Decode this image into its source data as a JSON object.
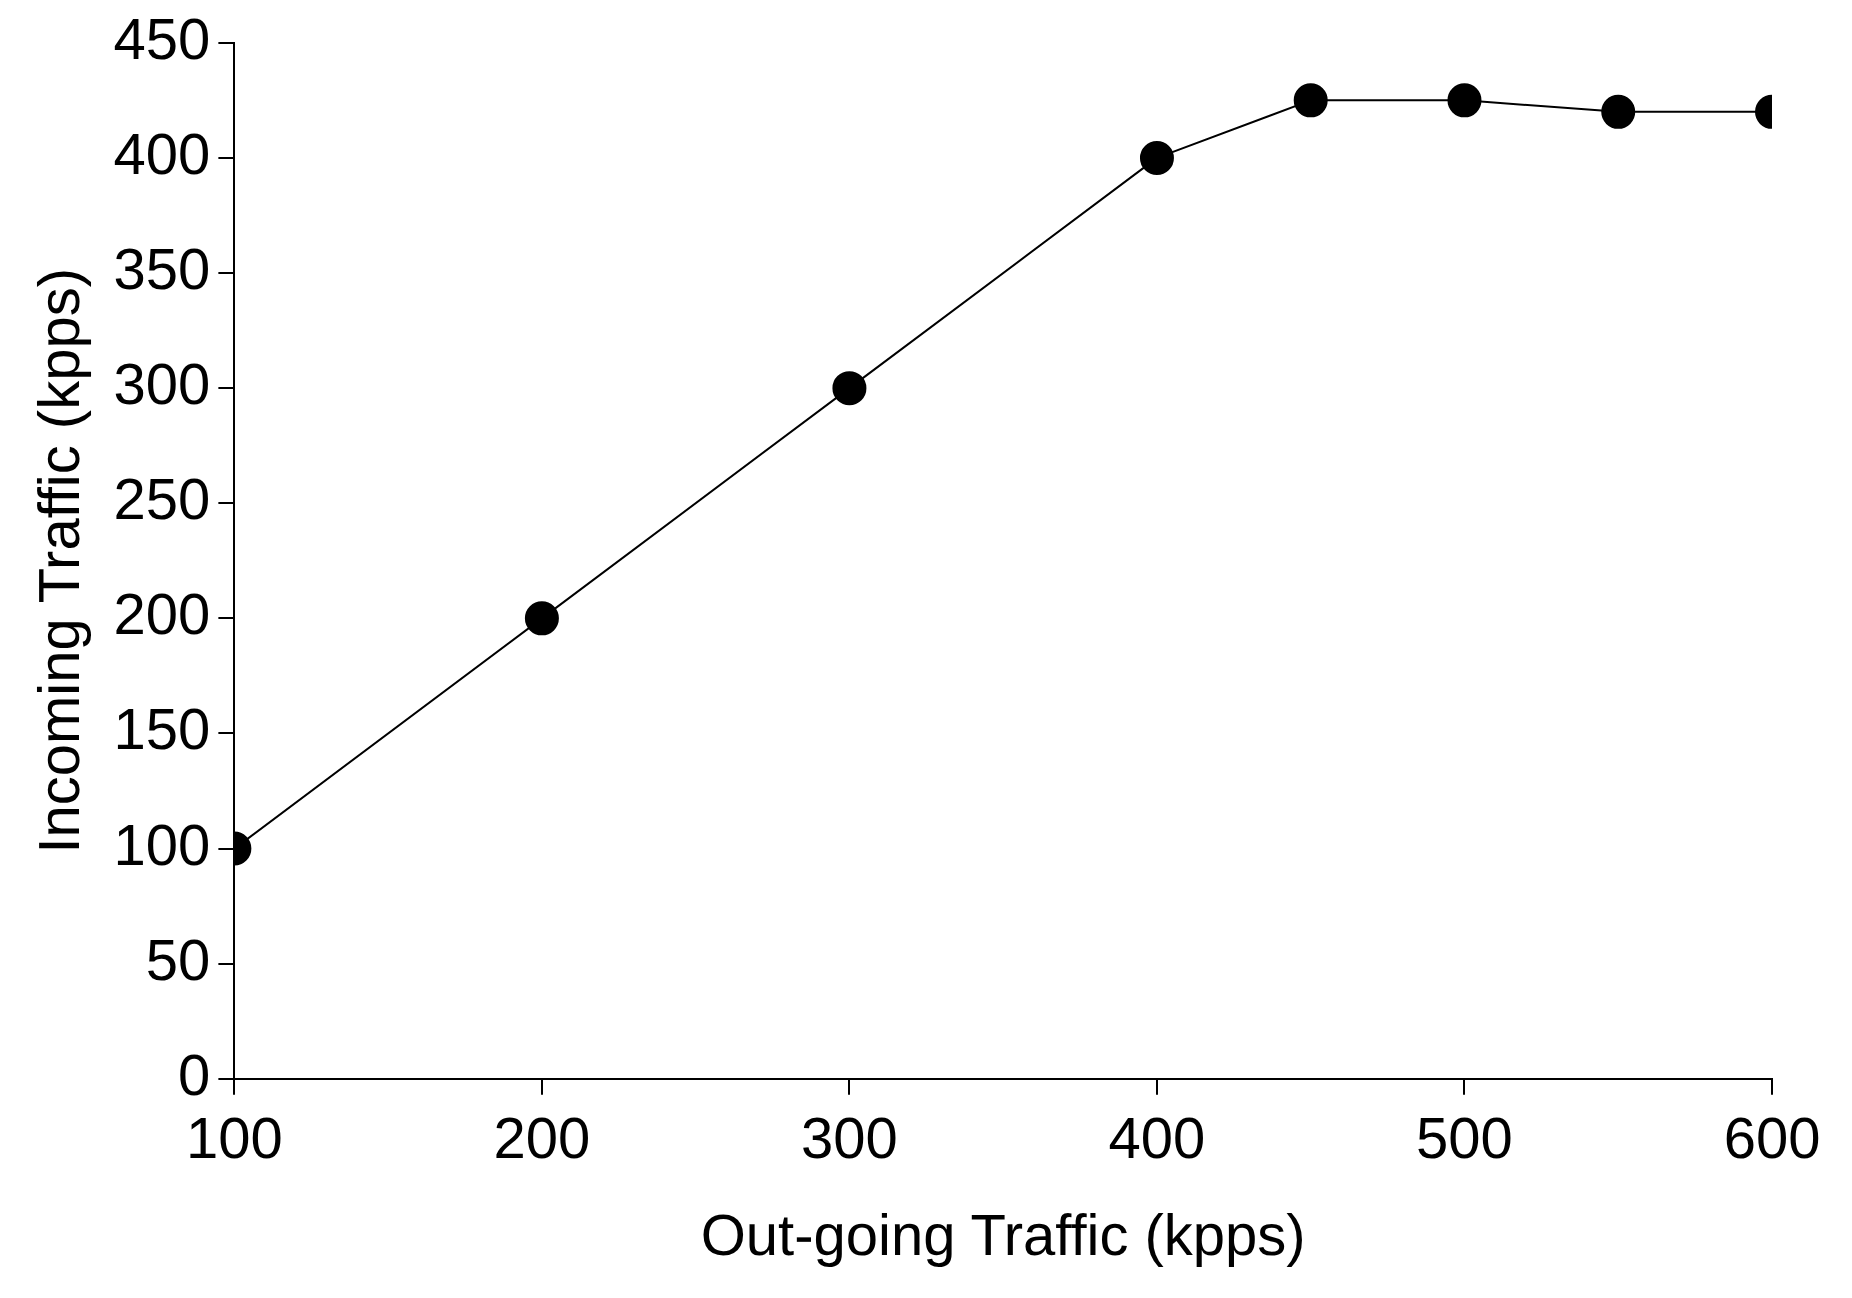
{
  "chart_data": {
    "type": "line",
    "xlabel": "Out-going Traffic (kpps)",
    "ylabel": "Incoming Traffic (kpps)",
    "x": [
      100,
      200,
      300,
      400,
      450,
      500,
      550,
      600
    ],
    "series": [
      {
        "color": "#000000",
        "values": [
          100,
          200,
          300,
          400,
          425,
          425,
          420,
          420
        ]
      }
    ],
    "xlim": [
      100,
      600
    ],
    "xticks": [
      100,
      200,
      300,
      400,
      500,
      600
    ],
    "ylim": [
      0,
      450
    ],
    "yticks": [
      0,
      50,
      100,
      150,
      200,
      250,
      300,
      350,
      400,
      450
    ],
    "marker": "circle",
    "line_style": "solid",
    "grid": false,
    "legend": false
  }
}
